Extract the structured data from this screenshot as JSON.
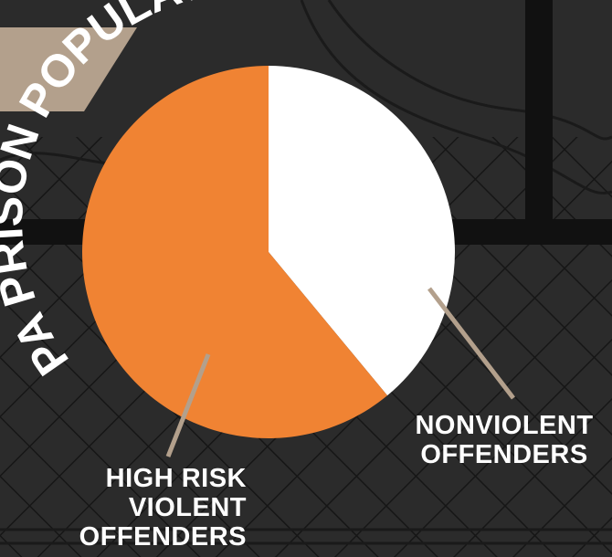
{
  "chart_data": {
    "type": "pie",
    "title": "PA PRISON POPULATION",
    "slices": [
      {
        "label": [
          "NONVIOLENT",
          "OFFENDERS"
        ],
        "value": 39,
        "color": "#ffffff"
      },
      {
        "label": [
          "HIGH RISK",
          "VIOLENT",
          "OFFENDERS"
        ],
        "value": 61,
        "color": "#f08333"
      }
    ],
    "start_angle_deg": 0,
    "direction": "clockwise",
    "label_style": "leader-lines",
    "leader_color": "#b3a08c"
  },
  "colors": {
    "background": "#2b2b2b",
    "accent_shape": "#b3a08c",
    "title": "#ffffff"
  },
  "decoration": [
    "barbed-wire",
    "chain-link-fence",
    "steel-bars"
  ]
}
